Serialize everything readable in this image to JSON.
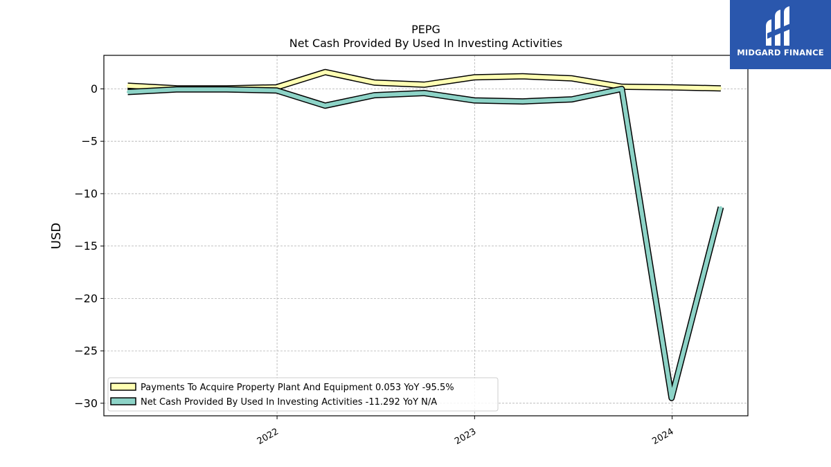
{
  "chart_data": {
    "type": "line",
    "title": "PEPG",
    "subtitle": "Net Cash Provided By Used In Investing Activities",
    "ylabel": "USD",
    "xlabel": "",
    "ylim": [
      -31.2,
      3.2
    ],
    "yticks": [
      0,
      -5,
      -10,
      -15,
      -20,
      -25,
      -30
    ],
    "ytick_labels": [
      "0",
      "−5",
      "−10",
      "−15",
      "−20",
      "−25",
      "−30"
    ],
    "xlim": [
      "2021-02-15",
      "2024-05-20"
    ],
    "xticks": [
      "2022-01-01",
      "2023-01-01",
      "2024-01-01"
    ],
    "xtick_labels": [
      "2022",
      "2023",
      "2024"
    ],
    "grid": true,
    "legend_position": "lower-left",
    "x": [
      "2021-03-31",
      "2021-06-30",
      "2021-09-30",
      "2021-12-31",
      "2022-03-31",
      "2022-06-30",
      "2022-09-30",
      "2022-12-31",
      "2023-03-31",
      "2023-06-30",
      "2023-09-30",
      "2023-12-31",
      "2024-03-31"
    ],
    "series": [
      {
        "name": "Payments To Acquire Property Plant And Equipment  0.053 YoY -95.5%",
        "color": "#ffffb3",
        "values": [
          0.3,
          0.05,
          0.05,
          0.15,
          1.6,
          0.6,
          0.4,
          1.1,
          1.2,
          1.0,
          0.2,
          0.15,
          0.053
        ]
      },
      {
        "name": "Net Cash Provided By Used In Investing Activities  -11.292 YoY N/A",
        "color": "#8dd3c7",
        "values": [
          -0.3,
          -0.05,
          -0.05,
          -0.15,
          -1.6,
          -0.6,
          -0.4,
          -1.1,
          -1.2,
          -1.0,
          0.0,
          -29.5,
          -11.292
        ]
      }
    ]
  },
  "logo": {
    "text": "MIDGARD FINANCE"
  }
}
